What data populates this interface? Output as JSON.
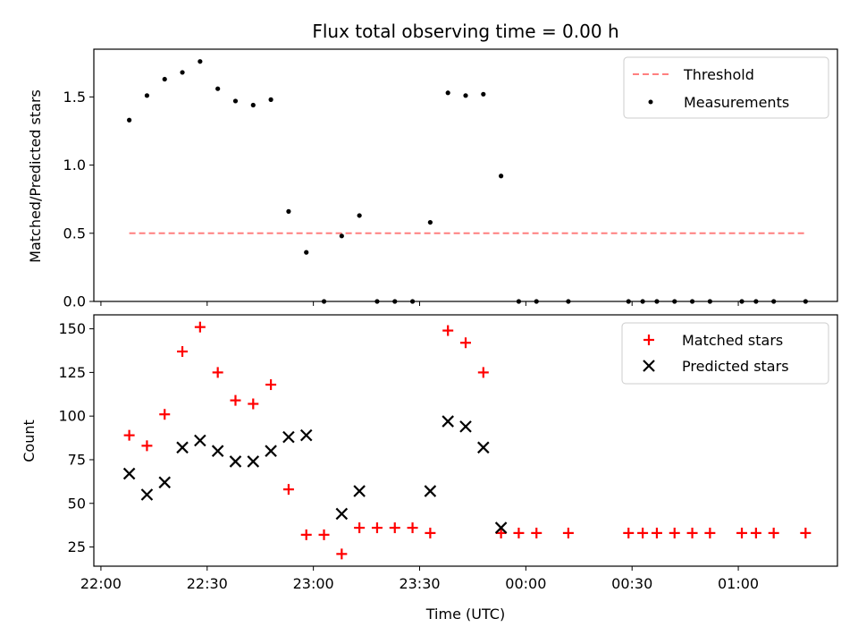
{
  "chart_data": [
    {
      "type": "scatter",
      "panel": "top",
      "title": "Flux total observing time = 0.00 h",
      "xlabel": "",
      "ylabel": "Matched/Predicted stars",
      "ylim": [
        0,
        1.85
      ],
      "yticks": [
        0,
        0.5,
        1.0,
        1.5
      ],
      "ytick_labels": [
        "0.0",
        "0.5",
        "1.0",
        "1.5"
      ],
      "legend_position": "top-right",
      "series": [
        {
          "name": "Threshold",
          "kind": "dashed-line",
          "color": "#ff7f7f",
          "x": [
            "22:08",
            "01:19"
          ],
          "y": [
            0.5,
            0.5
          ]
        },
        {
          "name": "Measurements",
          "kind": "points",
          "color": "#000000",
          "x": [
            "22:08",
            "22:13",
            "22:18",
            "22:23",
            "22:28",
            "22:33",
            "22:38",
            "22:43",
            "22:48",
            "22:53",
            "22:58",
            "23:03",
            "23:08",
            "23:13",
            "23:18",
            "23:23",
            "23:28",
            "23:33",
            "23:38",
            "23:43",
            "23:48",
            "23:53",
            "23:58",
            "00:03",
            "00:12",
            "00:29",
            "00:33",
            "00:37",
            "00:42",
            "00:47",
            "00:52",
            "01:01",
            "01:05",
            "01:10",
            "01:19"
          ],
          "y": [
            1.33,
            1.51,
            1.63,
            1.68,
            1.76,
            1.56,
            1.47,
            1.44,
            1.48,
            0.66,
            0.36,
            0.0,
            0.48,
            0.63,
            0.0,
            0.0,
            0.0,
            0.58,
            1.53,
            1.51,
            1.52,
            0.92,
            0.0,
            0.0,
            0.0,
            0.0,
            0.0,
            0.0,
            0.0,
            0.0,
            0.0,
            0.0,
            0.0,
            0.0,
            0.0
          ]
        }
      ]
    },
    {
      "type": "scatter",
      "panel": "bottom",
      "title": "",
      "xlabel": "Time (UTC)",
      "ylabel": "Count",
      "xlim": [
        "21:58",
        "01:28"
      ],
      "xticks": [
        "22:00",
        "22:30",
        "23:00",
        "23:30",
        "00:00",
        "00:30",
        "01:00"
      ],
      "ylim": [
        14,
        158
      ],
      "yticks": [
        25,
        50,
        75,
        100,
        125,
        150
      ],
      "legend_position": "top-right",
      "series": [
        {
          "name": "Matched stars",
          "marker": "plus",
          "color": "#ff0000",
          "x": [
            "22:08",
            "22:13",
            "22:18",
            "22:23",
            "22:28",
            "22:33",
            "22:38",
            "22:43",
            "22:48",
            "22:53",
            "22:58",
            "23:03",
            "23:08",
            "23:13",
            "23:18",
            "23:23",
            "23:28",
            "23:33",
            "23:38",
            "23:43",
            "23:48",
            "23:53",
            "23:58",
            "00:03",
            "00:12",
            "00:29",
            "00:33",
            "00:37",
            "00:42",
            "00:47",
            "00:52",
            "01:01",
            "01:05",
            "01:10",
            "01:19"
          ],
          "y": [
            89,
            83,
            101,
            137,
            151,
            125,
            109,
            107,
            118,
            58,
            32,
            32,
            21,
            36,
            36,
            36,
            36,
            33,
            149,
            142,
            125,
            33,
            33,
            33,
            33,
            33,
            33,
            33,
            33,
            33,
            33,
            33,
            33,
            33,
            33
          ]
        },
        {
          "name": "Predicted stars",
          "marker": "x",
          "color": "#000000",
          "x": [
            "22:08",
            "22:13",
            "22:18",
            "22:23",
            "22:28",
            "22:33",
            "22:38",
            "22:43",
            "22:48",
            "22:53",
            "22:58",
            "23:08",
            "23:13",
            "23:33",
            "23:38",
            "23:43",
            "23:48",
            "23:53"
          ],
          "y": [
            67,
            55,
            62,
            82,
            86,
            80,
            74,
            74,
            80,
            88,
            89,
            44,
            57,
            57,
            97,
            94,
            82,
            36
          ]
        }
      ]
    }
  ]
}
